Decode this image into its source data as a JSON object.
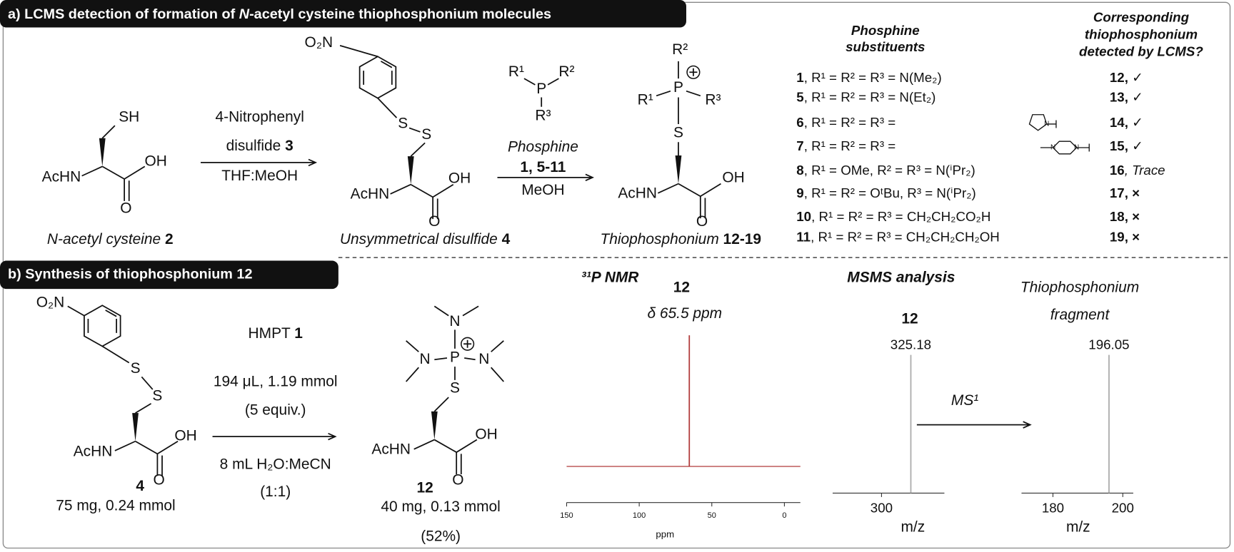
{
  "panel_a": {
    "title": [
      "a) LCMS detection of formation of ",
      "N",
      "-acetyl cysteine thiophosphonium molecules"
    ],
    "reactant": {
      "atoms": [
        "SH",
        "AcHN",
        "OH",
        "O"
      ],
      "caption": [
        "N-acetyl cysteine ",
        "2"
      ]
    },
    "step1": {
      "reagent": "4-Nitrophenyl",
      "reagent_id": [
        "disulfide ",
        "3"
      ],
      "solvent": "THF:MeOH"
    },
    "intermediate": {
      "atoms": [
        "O₂N",
        "S",
        "S",
        "AcHN",
        "OH",
        "O"
      ],
      "caption": [
        "Unsymmetrical disulfide ",
        "4"
      ]
    },
    "phosphine": {
      "atoms": [
        "R¹",
        "P",
        "R²",
        "R³"
      ],
      "label": "Phosphine",
      "compounds": "1, 5-11",
      "solvent": "MeOH"
    },
    "product": {
      "atoms": [
        "R²",
        "P",
        "R¹",
        "R³",
        "S",
        "AcHN",
        "OH",
        "O"
      ],
      "caption": [
        "Thiophosphonium ",
        "12-19"
      ]
    },
    "table": {
      "headers": [
        [
          "Phosphine",
          "substituents"
        ],
        [
          "Corresponding",
          "thiophosphonium",
          "detected by LCMS?"
        ]
      ],
      "rows": [
        {
          "compound": "1",
          "substituents": ", R¹ = R² = R³ = N(Me₂)",
          "product": "12,",
          "result": " ✓"
        },
        {
          "compound": "5",
          "substituents": ", R¹ = R² = R³ = N(Et₂)",
          "product": "13",
          "result": ", ✓"
        },
        {
          "compound": "6",
          "substituents": ", R¹ = R² = R³ =",
          "ring_atoms": [
            "N"
          ],
          "product": "14",
          "result": ", ✓"
        },
        {
          "compound": "7",
          "substituents": ", R¹ = R² = R³ =",
          "ring_atoms": [
            "N",
            "N"
          ],
          "product": "15",
          "result": ", ✓"
        },
        {
          "compound": "8",
          "substituents": ", R¹ = OMe, R² = R³ = N(ⁱPr₂)",
          "product": "16",
          "result": ", Trace"
        },
        {
          "compound": "9",
          "substituents": ", R¹ = R² = OᵗBu, R³ = N(ⁱPr₂)",
          "product": "17",
          "result": ", ×"
        },
        {
          "compound": "10",
          "substituents": ", R¹ = R² = R³ = CH₂CH₂CO₂H",
          "product": "18",
          "result": ", ×"
        },
        {
          "compound": "11",
          "substituents": ", R¹ = R² = R³ = CH₂CH₂CH₂OH",
          "product": "19",
          "result": ", ×"
        }
      ]
    }
  },
  "panel_b": {
    "title": "b) Synthesis of thiophosphonium 12",
    "reactant": {
      "atoms": [
        "O₂N",
        "S",
        "S",
        "AcHN",
        "OH",
        "O"
      ],
      "id": "4",
      "amount": "75 mg, 0.24 mmol"
    },
    "conditions": {
      "reagent": [
        "HMPT ",
        "1"
      ],
      "quantity": "194 μL, 1.19 mmol",
      "equiv": "(5 equiv.)",
      "solvent": "8 mL H₂O:MeCN",
      "ratio": "(1:1)"
    },
    "product": {
      "atoms": [
        "N",
        "N",
        "P",
        "N",
        "S",
        "AcHN",
        "OH",
        "O"
      ],
      "id": "12",
      "amount": "40 mg, 0.13 mmol",
      "yield": "(52%)"
    },
    "nmr": {
      "type": "spectrum",
      "title": "³¹P NMR",
      "compound": "12",
      "shift_label": "δ 65.5 ppm",
      "peak": 65.5,
      "xlabel": "ppm",
      "xlim": [
        150,
        -11
      ],
      "xticks": [
        150,
        100,
        50,
        0
      ],
      "color": "#b03a3a"
    },
    "msms": {
      "title": "MSMS analysis",
      "compound": "12",
      "transition": "MS¹",
      "fragment_label": [
        "Thiophosphonium",
        "fragment"
      ],
      "spectra": [
        {
          "type": "spectrum",
          "peak": 325.18,
          "xlabel": "m/z",
          "xlim": [
            258,
            354
          ],
          "xticks": [
            300
          ],
          "color": "#aaaaaa"
        },
        {
          "type": "spectrum",
          "peak": 196.05,
          "xlabel": "m/z",
          "xlim": [
            171,
            203
          ],
          "xticks": [
            180,
            200
          ],
          "color": "#aaaaaa"
        }
      ]
    }
  }
}
